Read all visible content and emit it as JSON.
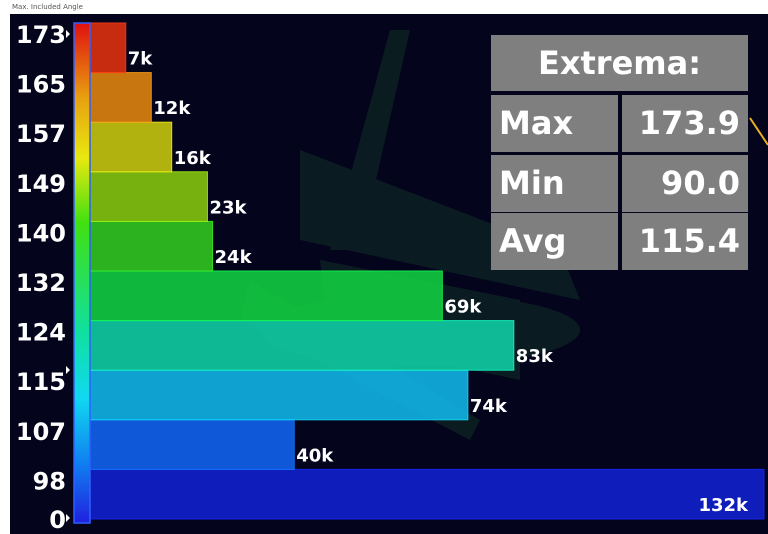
{
  "window": {
    "title": "Max. Included Angle"
  },
  "chart_data": {
    "type": "bar",
    "orientation": "horizontal",
    "bins": [
      {
        "lower": 0,
        "upper": 98,
        "count": 132000,
        "label": "132k",
        "color": "#1020c8"
      },
      {
        "lower": 98,
        "upper": 107,
        "count": 40000,
        "label": "40k",
        "color": "#1060e8"
      },
      {
        "lower": 107,
        "upper": 115,
        "count": 74000,
        "label": "74k",
        "color": "#10b0e0"
      },
      {
        "lower": 115,
        "upper": 124,
        "count": 83000,
        "label": "83k",
        "color": "#10c8a0"
      },
      {
        "lower": 124,
        "upper": 132,
        "count": 69000,
        "label": "69k",
        "color": "#10c840"
      },
      {
        "lower": 132,
        "upper": 140,
        "count": 24000,
        "label": "24k",
        "color": "#30c020"
      },
      {
        "lower": 140,
        "upper": 149,
        "count": 23000,
        "label": "23k",
        "color": "#80c010"
      },
      {
        "lower": 149,
        "upper": 157,
        "count": 16000,
        "label": "16k",
        "color": "#c0c010"
      },
      {
        "lower": 157,
        "upper": 165,
        "count": 12000,
        "label": "12k",
        "color": "#d88010"
      },
      {
        "lower": 165,
        "upper": 173,
        "count": 7000,
        "label": "7k",
        "color": "#d83010"
      }
    ],
    "ytick_labels": [
      "173",
      "165",
      "157",
      "149",
      "140",
      "132",
      "124",
      "115",
      "107",
      "98",
      "0"
    ],
    "xlim": [
      0,
      132000
    ]
  },
  "extrema": {
    "title": "Extrema:",
    "rows": [
      {
        "name": "Max",
        "value": "173.9"
      },
      {
        "name": "Min",
        "value": "90.0"
      },
      {
        "name": "Avg",
        "value": "115.4"
      }
    ]
  }
}
